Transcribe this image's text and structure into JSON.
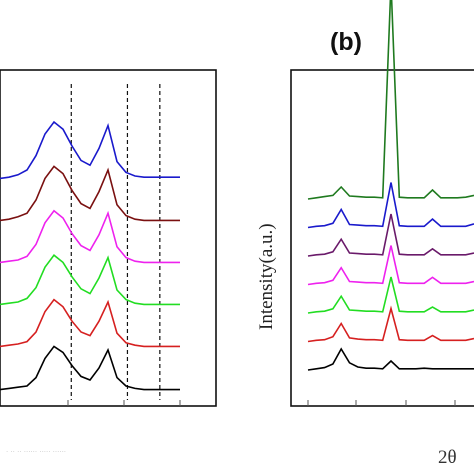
{
  "chart_data": [
    {
      "type": "line",
      "panel": "a",
      "title": "",
      "xlabel": "",
      "ylabel": "",
      "xlim": [
        0,
        1
      ],
      "grid": false,
      "series": [
        {
          "color": "#000000",
          "x": [
            0.0,
            0.05,
            0.1,
            0.15,
            0.2,
            0.25,
            0.3,
            0.35,
            0.4,
            0.45,
            0.5,
            0.55,
            0.6,
            0.65,
            0.7,
            0.75,
            0.8,
            0.85,
            0.9,
            0.95,
            1.0
          ],
          "values": [
            0.02,
            0.03,
            0.04,
            0.05,
            0.12,
            0.28,
            0.38,
            0.33,
            0.22,
            0.13,
            0.1,
            0.2,
            0.35,
            0.12,
            0.05,
            0.03,
            0.02,
            0.02,
            0.02,
            0.02,
            0.02
          ]
        },
        {
          "color": "#d62020",
          "x": [
            0.0,
            0.05,
            0.1,
            0.15,
            0.2,
            0.25,
            0.3,
            0.35,
            0.4,
            0.45,
            0.5,
            0.55,
            0.6,
            0.65,
            0.7,
            0.75,
            0.8,
            0.85,
            0.9,
            0.95,
            1.0
          ],
          "values": [
            0.03,
            0.04,
            0.05,
            0.07,
            0.15,
            0.32,
            0.42,
            0.36,
            0.24,
            0.15,
            0.12,
            0.24,
            0.4,
            0.14,
            0.06,
            0.04,
            0.03,
            0.03,
            0.03,
            0.03,
            0.03
          ]
        },
        {
          "color": "#22dd22",
          "x": [
            0.0,
            0.05,
            0.1,
            0.15,
            0.2,
            0.25,
            0.3,
            0.35,
            0.4,
            0.45,
            0.5,
            0.55,
            0.6,
            0.65,
            0.7,
            0.75,
            0.8,
            0.85,
            0.9,
            0.95,
            1.0
          ],
          "values": [
            0.03,
            0.04,
            0.05,
            0.08,
            0.17,
            0.34,
            0.44,
            0.38,
            0.26,
            0.16,
            0.12,
            0.25,
            0.42,
            0.15,
            0.07,
            0.04,
            0.03,
            0.03,
            0.03,
            0.03,
            0.03
          ]
        },
        {
          "color": "#ee22ee",
          "x": [
            0.0,
            0.05,
            0.1,
            0.15,
            0.2,
            0.25,
            0.3,
            0.35,
            0.4,
            0.45,
            0.5,
            0.55,
            0.6,
            0.65,
            0.7,
            0.75,
            0.8,
            0.85,
            0.9,
            0.95,
            1.0
          ],
          "values": [
            0.03,
            0.04,
            0.05,
            0.08,
            0.18,
            0.36,
            0.46,
            0.4,
            0.27,
            0.17,
            0.13,
            0.26,
            0.44,
            0.16,
            0.07,
            0.04,
            0.03,
            0.03,
            0.03,
            0.03,
            0.03
          ]
        },
        {
          "color": "#7a1010",
          "x": [
            0.0,
            0.05,
            0.1,
            0.15,
            0.2,
            0.25,
            0.3,
            0.35,
            0.4,
            0.45,
            0.5,
            0.55,
            0.6,
            0.65,
            0.7,
            0.75,
            0.8,
            0.85,
            0.9,
            0.95,
            1.0
          ],
          "values": [
            0.03,
            0.04,
            0.06,
            0.09,
            0.2,
            0.38,
            0.48,
            0.42,
            0.28,
            0.17,
            0.13,
            0.27,
            0.45,
            0.16,
            0.07,
            0.04,
            0.03,
            0.03,
            0.03,
            0.03,
            0.03
          ]
        },
        {
          "color": "#1a1acc",
          "x": [
            0.0,
            0.05,
            0.1,
            0.15,
            0.2,
            0.25,
            0.3,
            0.35,
            0.4,
            0.45,
            0.5,
            0.55,
            0.6,
            0.65,
            0.7,
            0.75,
            0.8,
            0.85,
            0.9,
            0.95,
            1.0
          ],
          "values": [
            0.03,
            0.04,
            0.06,
            0.1,
            0.22,
            0.4,
            0.5,
            0.44,
            0.3,
            0.18,
            0.14,
            0.28,
            0.47,
            0.17,
            0.08,
            0.05,
            0.04,
            0.04,
            0.04,
            0.04,
            0.04
          ]
        }
      ],
      "reference_lines_x": [
        0.33,
        0.59,
        0.74
      ]
    },
    {
      "type": "line",
      "panel": "b",
      "title": "(b)",
      "xlabel": "2θ",
      "ylabel": "Intensity(a.u.)",
      "xlim": [
        0,
        1
      ],
      "grid": false,
      "series": [
        {
          "color": "#000000",
          "x": [
            0.0,
            0.05,
            0.1,
            0.15,
            0.2,
            0.25,
            0.3,
            0.35,
            0.4,
            0.45,
            0.5,
            0.55,
            0.6,
            0.65,
            0.7,
            0.75,
            0.8,
            0.85,
            0.9,
            0.95,
            1.0
          ],
          "values": [
            0.0,
            0.02,
            0.04,
            0.1,
            0.35,
            0.12,
            0.05,
            0.03,
            0.03,
            0.02,
            0.15,
            0.02,
            0.02,
            0.02,
            0.03,
            0.02,
            0.02,
            0.02,
            0.02,
            0.02,
            0.02
          ]
        },
        {
          "color": "#d62020",
          "x": [
            0.0,
            0.05,
            0.1,
            0.15,
            0.2,
            0.25,
            0.3,
            0.35,
            0.4,
            0.45,
            0.5,
            0.55,
            0.6,
            0.65,
            0.7,
            0.75,
            0.8,
            0.85,
            0.9,
            0.95,
            1.0
          ],
          "values": [
            0.0,
            0.02,
            0.03,
            0.08,
            0.3,
            0.06,
            0.04,
            0.03,
            0.03,
            0.02,
            0.55,
            0.03,
            0.02,
            0.02,
            0.02,
            0.1,
            0.02,
            0.02,
            0.02,
            0.02,
            0.05
          ]
        },
        {
          "color": "#22dd22",
          "x": [
            0.0,
            0.05,
            0.1,
            0.15,
            0.2,
            0.25,
            0.3,
            0.35,
            0.4,
            0.45,
            0.5,
            0.55,
            0.6,
            0.65,
            0.7,
            0.75,
            0.8,
            0.85,
            0.9,
            0.95,
            1.0
          ],
          "values": [
            0.0,
            0.02,
            0.03,
            0.07,
            0.28,
            0.05,
            0.04,
            0.03,
            0.03,
            0.02,
            0.6,
            0.03,
            0.02,
            0.02,
            0.02,
            0.1,
            0.02,
            0.02,
            0.02,
            0.02,
            0.05
          ]
        },
        {
          "color": "#ee22ee",
          "x": [
            0.0,
            0.05,
            0.1,
            0.15,
            0.2,
            0.25,
            0.3,
            0.35,
            0.4,
            0.45,
            0.5,
            0.55,
            0.6,
            0.65,
            0.7,
            0.75,
            0.8,
            0.85,
            0.9,
            0.95,
            1.0
          ],
          "values": [
            0.0,
            0.02,
            0.03,
            0.07,
            0.28,
            0.05,
            0.04,
            0.03,
            0.03,
            0.02,
            0.65,
            0.03,
            0.02,
            0.02,
            0.02,
            0.12,
            0.02,
            0.02,
            0.02,
            0.02,
            0.05
          ]
        },
        {
          "color": "#6a1a6a",
          "x": [
            0.0,
            0.05,
            0.1,
            0.15,
            0.2,
            0.25,
            0.3,
            0.35,
            0.4,
            0.45,
            0.5,
            0.55,
            0.6,
            0.65,
            0.7,
            0.75,
            0.8,
            0.85,
            0.9,
            0.95,
            1.0
          ],
          "values": [
            0.0,
            0.02,
            0.03,
            0.07,
            0.28,
            0.05,
            0.04,
            0.03,
            0.03,
            0.02,
            0.7,
            0.03,
            0.02,
            0.02,
            0.02,
            0.12,
            0.02,
            0.02,
            0.02,
            0.02,
            0.05
          ]
        },
        {
          "color": "#1a1acc",
          "x": [
            0.0,
            0.05,
            0.1,
            0.15,
            0.2,
            0.25,
            0.3,
            0.35,
            0.4,
            0.45,
            0.5,
            0.55,
            0.6,
            0.65,
            0.7,
            0.75,
            0.8,
            0.85,
            0.9,
            0.95,
            1.0
          ],
          "values": [
            0.0,
            0.02,
            0.03,
            0.07,
            0.3,
            0.05,
            0.04,
            0.03,
            0.03,
            0.02,
            0.75,
            0.03,
            0.02,
            0.02,
            0.02,
            0.14,
            0.02,
            0.02,
            0.02,
            0.02,
            0.06
          ]
        },
        {
          "color": "#1f7a1f",
          "x": [
            0.0,
            0.05,
            0.1,
            0.15,
            0.2,
            0.25,
            0.3,
            0.35,
            0.4,
            0.45,
            0.5,
            0.55,
            0.6,
            0.65,
            0.7,
            0.75,
            0.8,
            0.85,
            0.9,
            0.95,
            1.0
          ],
          "values": [
            0.0,
            0.02,
            0.04,
            0.06,
            0.2,
            0.05,
            0.04,
            0.03,
            0.03,
            0.02,
            3.6,
            0.03,
            0.02,
            0.02,
            0.02,
            0.15,
            0.02,
            0.02,
            0.02,
            0.03,
            0.06
          ]
        }
      ]
    }
  ]
}
